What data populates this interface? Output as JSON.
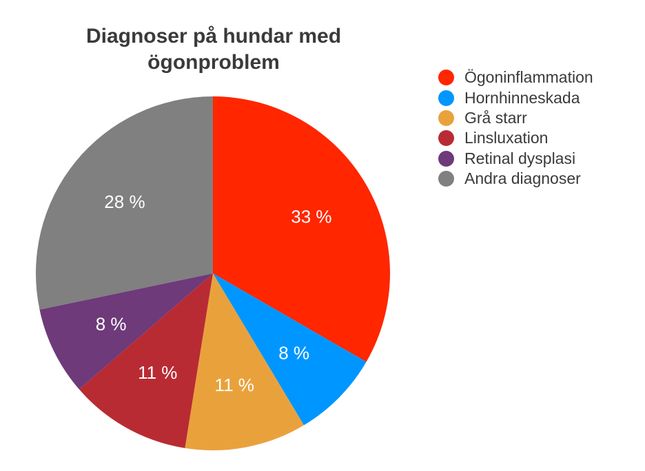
{
  "chart_data": {
    "type": "pie",
    "title_lines": [
      "Diagnoser på hundar med",
      "ögonproblem"
    ],
    "slices": [
      {
        "name": "Ögoninflammation",
        "value": 33,
        "label": "33 %",
        "color": "#ff2600"
      },
      {
        "name": "Hornhinneskada",
        "value": 8,
        "label": "8 %",
        "color": "#0096ff"
      },
      {
        "name": "Grå starr",
        "value": 11,
        "label": "11 %",
        "color": "#e9a23b"
      },
      {
        "name": "Linsluxation",
        "value": 11,
        "label": "11 %",
        "color": "#b92b33"
      },
      {
        "name": "Retinal dysplasi",
        "value": 8,
        "label": "8 %",
        "color": "#6e3a7a"
      },
      {
        "name": "Andra diagnoser",
        "value": 28,
        "label": "28 %",
        "color": "#808080"
      }
    ],
    "legend_position": "right"
  }
}
